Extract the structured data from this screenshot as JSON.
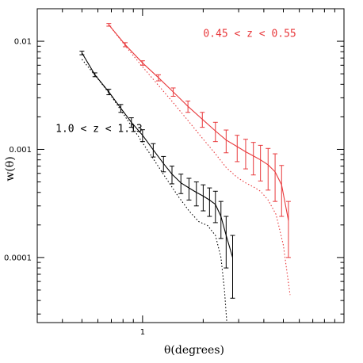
{
  "chart_data": {
    "type": "line",
    "title": "",
    "xlabel": "θ(degrees)",
    "ylabel": "w(θ)",
    "xscale": "log",
    "yscale": "log",
    "xlim": [
      0.3,
      10
    ],
    "ylim": [
      2.5e-05,
      0.02
    ],
    "grid": false,
    "legend": "none",
    "x_tick_labels": [
      {
        "value": 1,
        "label": "1"
      }
    ],
    "y_tick_labels": [
      {
        "value": 0.0001,
        "label": "0.0001"
      },
      {
        "value": 0.001,
        "label": "0.001"
      },
      {
        "value": 0.01,
        "label": "0.01"
      }
    ],
    "annotations": [
      {
        "text": "0.45 < z < 0.55",
        "color": "#e8383b",
        "x": 2.0,
        "y": 0.011
      },
      {
        "text": "1.0 < z < 1.13",
        "color": "#000000",
        "x": 0.37,
        "y": 0.00145
      }
    ],
    "series": [
      {
        "color": "#000000",
        "style": "solid",
        "kind": "data",
        "x": [
          0.5,
          0.58,
          0.68,
          0.78,
          0.88,
          1.0,
          1.13,
          1.27,
          1.4,
          1.55,
          1.7,
          1.85,
          2.0,
          2.15,
          2.3,
          2.45,
          2.6,
          2.8
        ],
        "y": [
          0.0078,
          0.0049,
          0.0034,
          0.0024,
          0.00178,
          0.00135,
          0.00099,
          0.00074,
          0.00059,
          0.00049,
          0.00044,
          0.0004,
          0.00037,
          0.00034,
          0.00031,
          0.00024,
          0.00016,
          0.0001
        ],
        "yerr_low": [
          0.0075,
          0.0047,
          0.0032,
          0.0022,
          0.0016,
          0.00118,
          0.00085,
          0.00062,
          0.00048,
          0.00039,
          0.00034,
          0.0003,
          0.00027,
          0.00024,
          0.00021,
          0.00015,
          8e-05,
          4.2e-05
        ],
        "yerr_high": [
          0.0081,
          0.0051,
          0.0036,
          0.0026,
          0.00196,
          0.00152,
          0.00113,
          0.00086,
          0.0007,
          0.00059,
          0.00054,
          0.0005,
          0.00047,
          0.00044,
          0.00041,
          0.00033,
          0.00024,
          0.00016
        ]
      },
      {
        "color": "#000000",
        "style": "dotted",
        "kind": "model",
        "x": [
          0.5,
          0.6,
          0.7,
          0.8,
          0.9,
          1.0,
          1.15,
          1.3,
          1.5,
          1.7,
          1.9,
          2.1,
          2.3,
          2.45,
          2.55,
          2.62
        ],
        "y": [
          0.0068,
          0.0045,
          0.0031,
          0.00215,
          0.00155,
          0.00115,
          0.00078,
          0.00055,
          0.00037,
          0.00027,
          0.000215,
          0.000198,
          0.00016,
          0.0001,
          5e-05,
          2.5e-05
        ]
      },
      {
        "color": "#e8383b",
        "style": "solid",
        "kind": "data",
        "x": [
          0.68,
          0.82,
          1.0,
          1.2,
          1.42,
          1.68,
          1.98,
          2.3,
          2.6,
          2.95,
          3.25,
          3.55,
          3.85,
          4.2,
          4.55,
          4.9,
          5.3
        ],
        "y": [
          0.0142,
          0.0093,
          0.0063,
          0.0046,
          0.0034,
          0.0025,
          0.0019,
          0.00148,
          0.00122,
          0.00106,
          0.00095,
          0.00087,
          0.0008,
          0.00072,
          0.00062,
          0.00047,
          0.00022
        ],
        "yerr_low": [
          0.0138,
          0.0089,
          0.006,
          0.0043,
          0.0031,
          0.0022,
          0.0016,
          0.00118,
          0.00093,
          0.00077,
          0.00066,
          0.00058,
          0.00051,
          0.00042,
          0.00033,
          0.00024,
          0.0001
        ],
        "yerr_high": [
          0.0146,
          0.0097,
          0.0066,
          0.0049,
          0.0037,
          0.0028,
          0.0022,
          0.00178,
          0.00151,
          0.00135,
          0.00124,
          0.00116,
          0.00109,
          0.00102,
          0.00091,
          0.00071,
          0.00033
        ]
      },
      {
        "color": "#e8383b",
        "style": "dotted",
        "kind": "model",
        "x": [
          0.68,
          0.82,
          1.0,
          1.2,
          1.42,
          1.68,
          1.98,
          2.3,
          2.6,
          2.95,
          3.25,
          3.55,
          3.85,
          4.2,
          4.6,
          5.0,
          5.4
        ],
        "y": [
          0.0142,
          0.0091,
          0.0058,
          0.0039,
          0.0027,
          0.00185,
          0.00127,
          0.00091,
          0.00068,
          0.00055,
          0.00049,
          0.00045,
          0.00041,
          0.00034,
          0.00025,
          0.00013,
          4.5e-05
        ]
      }
    ]
  }
}
